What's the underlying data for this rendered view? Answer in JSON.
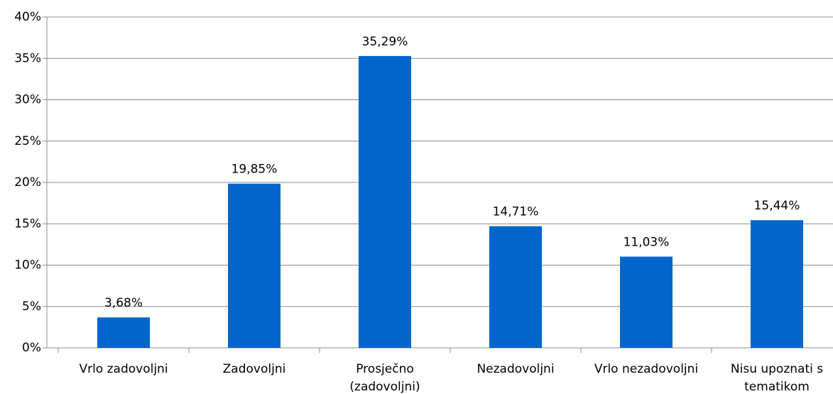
{
  "chart_data": {
    "type": "bar",
    "categories": [
      "Vrlo zadovoljni",
      "Zadovoljni",
      "Prosječno (zadovoljni)",
      "Nezadovoljni",
      "Vrlo nezadovoljni",
      "Nisu upoznati s tematikom"
    ],
    "values": [
      3.68,
      19.85,
      35.29,
      14.71,
      11.03,
      15.44
    ],
    "value_labels": [
      "3,68%",
      "19,85%",
      "35,29%",
      "14,71%",
      "11,03%",
      "15,44%"
    ],
    "color": "#0066cc",
    "ylim": [
      0,
      40
    ],
    "yticks": [
      {
        "value": 0,
        "label": "0%"
      },
      {
        "value": 5,
        "label": "5%"
      },
      {
        "value": 10,
        "label": "10%"
      },
      {
        "value": 15,
        "label": "15%"
      },
      {
        "value": 20,
        "label": "20%"
      },
      {
        "value": 25,
        "label": "25%"
      },
      {
        "value": 30,
        "label": "30%"
      },
      {
        "value": 35,
        "label": "35%"
      },
      {
        "value": 40,
        "label": "40%"
      }
    ],
    "grid": true
  }
}
